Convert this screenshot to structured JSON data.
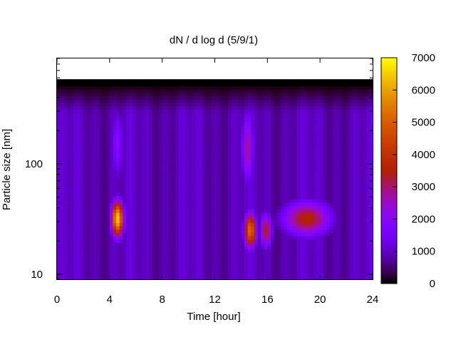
{
  "chart_data": {
    "type": "heatmap",
    "title": "dN / d log d (5/9/1)",
    "xlabel": "Time [hour]",
    "ylabel": "Particle size [nm]",
    "xlim": [
      0,
      24
    ],
    "xticks": [
      "0",
      "4",
      "8",
      "12",
      "16",
      "20",
      "24"
    ],
    "y_scale": "log",
    "ylim_nm": [
      9,
      900
    ],
    "yticks": [
      "10",
      "100"
    ],
    "colorbar": {
      "min": 0,
      "max": 7000,
      "ticks": [
        "0",
        "1000",
        "2000",
        "3000",
        "4000",
        "5000",
        "6000",
        "7000"
      ],
      "palette": "black-purple-red-orange-yellow"
    },
    "background_level": 1200,
    "upper_size_limit_nm": 520,
    "features": [
      {
        "description": "burst",
        "t_hour": 4.6,
        "d_nm": 32,
        "value": 6500
      },
      {
        "description": "broad mode",
        "t_hour": 4.6,
        "d_nm": 150,
        "value": 2000
      },
      {
        "description": "burst",
        "t_hour": 14.7,
        "d_nm": 25,
        "value": 5200
      },
      {
        "description": "broad mode",
        "t_hour": 14.5,
        "d_nm": 140,
        "value": 2800
      },
      {
        "description": "burst",
        "t_hour": 15.9,
        "d_nm": 25,
        "value": 3400
      },
      {
        "description": "evening mode",
        "t_hour": 19.0,
        "d_nm": 32,
        "value": 3600
      }
    ]
  }
}
